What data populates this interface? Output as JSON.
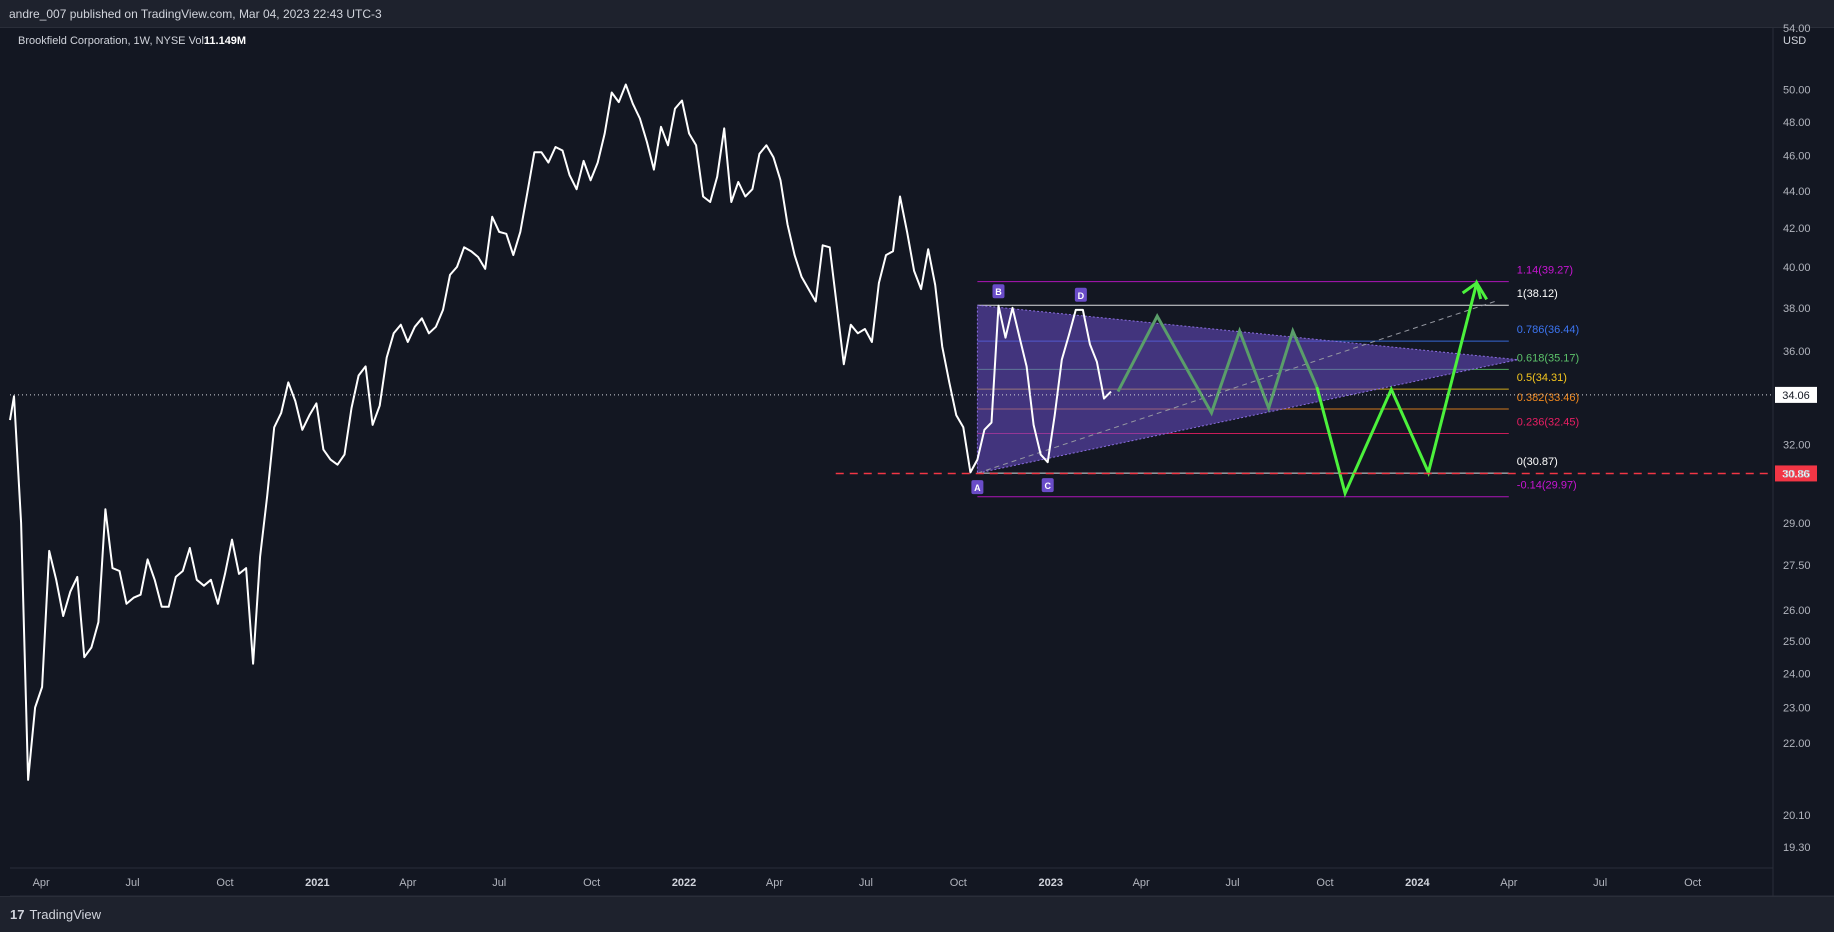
{
  "header": {
    "publish_text": "andre_007 published on TradingView.com, Mar 04, 2023 22:43 UTC-3"
  },
  "legend": {
    "symbol": "Brookfield Corporation, 1W, NYSE",
    "vol_label": "Vol",
    "vol_value": "11.149M"
  },
  "footer": {
    "logo_glyph": "17",
    "brand": "TradingView"
  },
  "colors": {
    "background": "#131722",
    "price_line": "#ffffff",
    "projection": "#4cf23c",
    "pattern_fill": "#6a4cc8",
    "current_price": "#f23645"
  },
  "chart_data": {
    "type": "line",
    "currency": "USD",
    "scale": "log",
    "ylim": [
      18.8,
      54.0
    ],
    "y_ticks": [
      54.0,
      50.0,
      48.0,
      46.0,
      44.0,
      42.0,
      40.0,
      38.0,
      36.0,
      32.0,
      30.86,
      29.0,
      27.5,
      26.0,
      25.0,
      24.0,
      23.0,
      22.0,
      20.1,
      19.3
    ],
    "y_tick_labels": [
      "54.00",
      "50.00",
      "48.00",
      "46.00",
      "44.00",
      "42.00",
      "40.00",
      "38.00",
      "36.00",
      "32.00",
      "30.86",
      "29.00",
      "27.50",
      "26.00",
      "25.00",
      "24.00",
      "23.00",
      "22.00",
      "20.10",
      "19.30"
    ],
    "x_range": [
      "2020-03-01",
      "2024-12-20"
    ],
    "x_ticks": [
      {
        "date": "2020-04-01",
        "label": "Apr",
        "bold": false
      },
      {
        "date": "2020-07-01",
        "label": "Jul",
        "bold": false
      },
      {
        "date": "2020-10-01",
        "label": "Oct",
        "bold": false
      },
      {
        "date": "2021-01-01",
        "label": "2021",
        "bold": true
      },
      {
        "date": "2021-04-01",
        "label": "Apr",
        "bold": false
      },
      {
        "date": "2021-07-01",
        "label": "Jul",
        "bold": false
      },
      {
        "date": "2021-10-01",
        "label": "Oct",
        "bold": false
      },
      {
        "date": "2022-01-01",
        "label": "2022",
        "bold": true
      },
      {
        "date": "2022-04-01",
        "label": "Apr",
        "bold": false
      },
      {
        "date": "2022-07-01",
        "label": "Jul",
        "bold": false
      },
      {
        "date": "2022-10-01",
        "label": "Oct",
        "bold": false
      },
      {
        "date": "2023-01-01",
        "label": "2023",
        "bold": true
      },
      {
        "date": "2023-04-01",
        "label": "Apr",
        "bold": false
      },
      {
        "date": "2023-07-01",
        "label": "Jul",
        "bold": false
      },
      {
        "date": "2023-10-01",
        "label": "Oct",
        "bold": false
      },
      {
        "date": "2024-01-01",
        "label": "2024",
        "bold": true
      },
      {
        "date": "2024-04-01",
        "label": "Apr",
        "bold": false
      },
      {
        "date": "2024-07-01",
        "label": "Jul",
        "bold": false
      },
      {
        "date": "2024-10-01",
        "label": "Oct",
        "bold": false
      }
    ],
    "series": [
      {
        "values": [
          [
            "2020-03-01",
            33.0
          ],
          [
            "2020-03-05",
            34.0
          ],
          [
            "2020-03-12",
            29.0
          ],
          [
            "2020-03-19",
            21.0
          ],
          [
            "2020-03-26",
            23.0
          ],
          [
            "2020-04-02",
            23.6
          ],
          [
            "2020-04-09",
            28.0
          ],
          [
            "2020-04-16",
            27.0
          ],
          [
            "2020-04-23",
            25.8
          ],
          [
            "2020-04-30",
            26.6
          ],
          [
            "2020-05-07",
            27.1
          ],
          [
            "2020-05-14",
            24.5
          ],
          [
            "2020-05-21",
            24.8
          ],
          [
            "2020-05-28",
            25.6
          ],
          [
            "2020-06-04",
            29.5
          ],
          [
            "2020-06-11",
            27.4
          ],
          [
            "2020-06-18",
            27.3
          ],
          [
            "2020-06-25",
            26.2
          ],
          [
            "2020-07-02",
            26.4
          ],
          [
            "2020-07-09",
            26.5
          ],
          [
            "2020-07-16",
            27.7
          ],
          [
            "2020-07-23",
            27.0
          ],
          [
            "2020-07-30",
            26.1
          ],
          [
            "2020-08-06",
            26.1
          ],
          [
            "2020-08-13",
            27.1
          ],
          [
            "2020-08-20",
            27.3
          ],
          [
            "2020-08-27",
            28.1
          ],
          [
            "2020-09-03",
            27.0
          ],
          [
            "2020-09-10",
            26.8
          ],
          [
            "2020-09-17",
            27.0
          ],
          [
            "2020-09-24",
            26.2
          ],
          [
            "2020-10-01",
            27.2
          ],
          [
            "2020-10-08",
            28.4
          ],
          [
            "2020-10-15",
            27.2
          ],
          [
            "2020-10-22",
            27.4
          ],
          [
            "2020-10-29",
            24.3
          ],
          [
            "2020-11-05",
            27.8
          ],
          [
            "2020-11-12",
            30.0
          ],
          [
            "2020-11-19",
            32.7
          ],
          [
            "2020-11-26",
            33.3
          ],
          [
            "2020-12-03",
            34.6
          ],
          [
            "2020-12-10",
            33.8
          ],
          [
            "2020-12-17",
            32.6
          ],
          [
            "2020-12-24",
            33.2
          ],
          [
            "2020-12-31",
            33.7
          ],
          [
            "2021-01-07",
            31.8
          ],
          [
            "2021-01-14",
            31.4
          ],
          [
            "2021-01-21",
            31.2
          ],
          [
            "2021-01-28",
            31.6
          ],
          [
            "2021-02-04",
            33.5
          ],
          [
            "2021-02-11",
            34.9
          ],
          [
            "2021-02-18",
            35.3
          ],
          [
            "2021-02-25",
            32.8
          ],
          [
            "2021-03-04",
            33.6
          ],
          [
            "2021-03-11",
            35.7
          ],
          [
            "2021-03-18",
            36.8
          ],
          [
            "2021-03-25",
            37.2
          ],
          [
            "2021-04-01",
            36.4
          ],
          [
            "2021-04-08",
            37.1
          ],
          [
            "2021-04-15",
            37.5
          ],
          [
            "2021-04-22",
            36.8
          ],
          [
            "2021-04-29",
            37.1
          ],
          [
            "2021-05-06",
            37.9
          ],
          [
            "2021-05-13",
            39.6
          ],
          [
            "2021-05-20",
            40.0
          ],
          [
            "2021-05-27",
            41.0
          ],
          [
            "2021-06-03",
            40.8
          ],
          [
            "2021-06-10",
            40.5
          ],
          [
            "2021-06-17",
            39.9
          ],
          [
            "2021-06-24",
            42.6
          ],
          [
            "2021-07-01",
            41.8
          ],
          [
            "2021-07-08",
            41.7
          ],
          [
            "2021-07-15",
            40.6
          ],
          [
            "2021-07-22",
            41.8
          ],
          [
            "2021-07-29",
            43.9
          ],
          [
            "2021-08-05",
            46.2
          ],
          [
            "2021-08-12",
            46.2
          ],
          [
            "2021-08-19",
            45.6
          ],
          [
            "2021-08-26",
            46.5
          ],
          [
            "2021-09-02",
            46.3
          ],
          [
            "2021-09-09",
            44.9
          ],
          [
            "2021-09-16",
            44.1
          ],
          [
            "2021-09-23",
            45.7
          ],
          [
            "2021-09-30",
            44.6
          ],
          [
            "2021-10-07",
            45.6
          ],
          [
            "2021-10-14",
            47.3
          ],
          [
            "2021-10-21",
            49.8
          ],
          [
            "2021-10-28",
            49.2
          ],
          [
            "2021-11-04",
            50.3
          ],
          [
            "2021-11-11",
            49.1
          ],
          [
            "2021-11-18",
            48.2
          ],
          [
            "2021-11-25",
            46.8
          ],
          [
            "2021-12-02",
            45.2
          ],
          [
            "2021-12-09",
            47.7
          ],
          [
            "2021-12-16",
            46.6
          ],
          [
            "2021-12-23",
            48.8
          ],
          [
            "2021-12-30",
            49.3
          ],
          [
            "2022-01-06",
            47.3
          ],
          [
            "2022-01-13",
            46.6
          ],
          [
            "2022-01-20",
            43.7
          ],
          [
            "2022-01-27",
            43.4
          ],
          [
            "2022-02-03",
            44.8
          ],
          [
            "2022-02-10",
            47.6
          ],
          [
            "2022-02-17",
            43.4
          ],
          [
            "2022-02-24",
            44.5
          ],
          [
            "2022-03-03",
            43.7
          ],
          [
            "2022-03-10",
            44.1
          ],
          [
            "2022-03-17",
            46.1
          ],
          [
            "2022-03-24",
            46.6
          ],
          [
            "2022-03-31",
            45.9
          ],
          [
            "2022-04-07",
            44.6
          ],
          [
            "2022-04-14",
            42.2
          ],
          [
            "2022-04-21",
            40.6
          ],
          [
            "2022-04-28",
            39.5
          ],
          [
            "2022-05-05",
            38.9
          ],
          [
            "2022-05-12",
            38.3
          ],
          [
            "2022-05-19",
            41.1
          ],
          [
            "2022-05-26",
            41.0
          ],
          [
            "2022-06-02",
            38.1
          ],
          [
            "2022-06-09",
            35.4
          ],
          [
            "2022-06-16",
            37.2
          ],
          [
            "2022-06-23",
            36.8
          ],
          [
            "2022-06-30",
            37.0
          ],
          [
            "2022-07-07",
            36.4
          ],
          [
            "2022-07-14",
            39.2
          ],
          [
            "2022-07-21",
            40.6
          ],
          [
            "2022-07-28",
            40.8
          ],
          [
            "2022-08-04",
            43.7
          ],
          [
            "2022-08-11",
            41.8
          ],
          [
            "2022-08-18",
            39.8
          ],
          [
            "2022-08-25",
            38.9
          ],
          [
            "2022-09-01",
            40.9
          ],
          [
            "2022-09-08",
            39.1
          ],
          [
            "2022-09-15",
            36.2
          ],
          [
            "2022-09-22",
            34.6
          ],
          [
            "2022-09-29",
            33.2
          ],
          [
            "2022-10-06",
            32.7
          ],
          [
            "2022-10-13",
            30.9
          ],
          [
            "2022-10-20",
            31.4
          ],
          [
            "2022-10-27",
            32.6
          ],
          [
            "2022-11-03",
            32.9
          ],
          [
            "2022-11-10",
            38.1
          ],
          [
            "2022-11-17",
            36.6
          ],
          [
            "2022-11-24",
            38.0
          ],
          [
            "2022-12-01",
            36.6
          ],
          [
            "2022-12-08",
            35.3
          ],
          [
            "2022-12-15",
            32.8
          ],
          [
            "2022-12-22",
            31.6
          ],
          [
            "2022-12-29",
            31.3
          ],
          [
            "2023-01-05",
            33.2
          ],
          [
            "2023-01-12",
            35.6
          ],
          [
            "2023-01-19",
            36.7
          ],
          [
            "2023-01-26",
            37.9
          ],
          [
            "2023-02-02",
            37.9
          ],
          [
            "2023-02-09",
            36.3
          ],
          [
            "2023-02-16",
            35.5
          ],
          [
            "2023-02-23",
            33.9
          ],
          [
            "2023-03-02",
            34.2
          ]
        ]
      }
    ],
    "projection": {
      "muted_path": [
        [
          "2023-03-09",
          34.2
        ],
        [
          "2023-04-17",
          37.6
        ],
        [
          "2023-06-10",
          33.3
        ],
        [
          "2023-07-08",
          36.9
        ],
        [
          "2023-08-06",
          33.5
        ],
        [
          "2023-08-30",
          36.9
        ],
        [
          "2023-09-23",
          34.4
        ]
      ],
      "bright_path": [
        [
          "2023-09-23",
          34.4
        ],
        [
          "2023-10-21",
          30.1
        ],
        [
          "2023-12-06",
          34.3
        ],
        [
          "2024-01-12",
          30.9
        ],
        [
          "2024-02-29",
          39.2
        ],
        [
          "2024-03-10",
          38.4
        ]
      ],
      "arrow_at": [
        "2024-02-29",
        39.2
      ]
    },
    "triangle": {
      "upper": [
        [
          "2022-10-20",
          38.12
        ],
        [
          "2024-04-10",
          35.6
        ]
      ],
      "lower": [
        [
          "2022-10-20",
          30.87
        ],
        [
          "2024-04-10",
          35.6
        ]
      ],
      "diagonal": [
        [
          "2022-10-20",
          30.87
        ],
        [
          "2024-03-18",
          38.3
        ]
      ],
      "points": [
        {
          "label": "A",
          "date": "2022-10-20",
          "price": 30.87,
          "below": true
        },
        {
          "label": "B",
          "date": "2022-11-10",
          "price": 38.12,
          "below": false
        },
        {
          "label": "C",
          "date": "2022-12-29",
          "price": 30.95,
          "below": true
        },
        {
          "label": "D",
          "date": "2023-01-31",
          "price": 37.95,
          "below": false
        }
      ]
    },
    "fib_range": [
      "2022-10-20",
      "2024-04-01"
    ],
    "fib_levels": [
      {
        "label": "1.14(39.27)",
        "value": 39.27,
        "color": "#c815d3"
      },
      {
        "label": "1(38.12)",
        "value": 38.12,
        "color": "#ffffff"
      },
      {
        "label": "0.786(36.44)",
        "value": 36.44,
        "color": "#3c75f2"
      },
      {
        "label": "0.618(35.17)",
        "value": 35.17,
        "color": "#5cc26a"
      },
      {
        "label": "0.5(34.31)",
        "value": 34.31,
        "color": "#f5c61e"
      },
      {
        "label": "0.382(33.46)",
        "value": 33.46,
        "color": "#f28a1e"
      },
      {
        "label": "0.236(32.45)",
        "value": 32.45,
        "color": "#e91e63"
      },
      {
        "label": "0(30.87)",
        "value": 30.87,
        "color": "#ffffff"
      },
      {
        "label": "-0.14(29.97)",
        "value": 29.97,
        "color": "#c815d3"
      }
    ],
    "crosshair": {
      "price": 34.06,
      "label": "34.06"
    },
    "current_price": {
      "price": 30.86,
      "label": "30.86",
      "line_from": "2022-06-01"
    }
  }
}
